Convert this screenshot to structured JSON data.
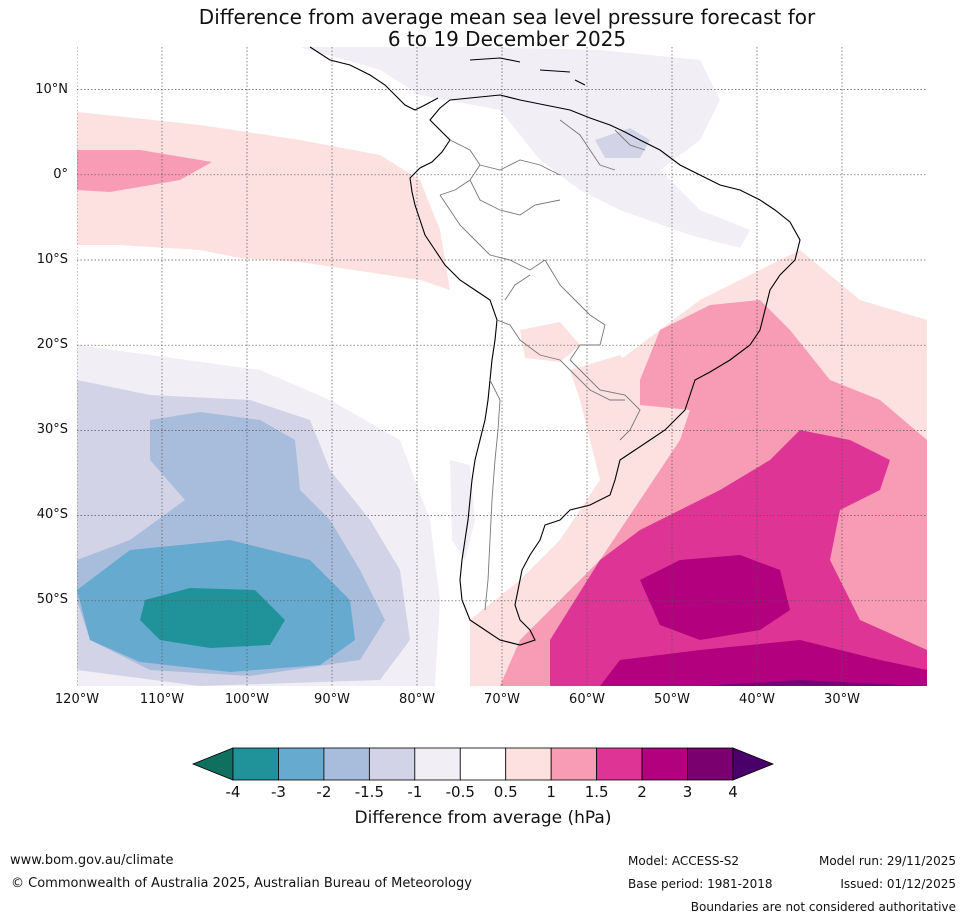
{
  "title": {
    "line1": "Difference from average mean sea level pressure forecast for",
    "line2": "6 to 19 December 2025"
  },
  "map": {
    "lat_labels": [
      "10°N",
      "0°",
      "10°S",
      "20°S",
      "30°S",
      "40°S",
      "50°S"
    ],
    "lon_labels": [
      "120°W",
      "110°W",
      "100°W",
      "90°W",
      "80°W",
      "70°W",
      "60°W",
      "50°W",
      "40°W",
      "30°W"
    ],
    "extent": {
      "lon_min": -120,
      "lon_max": -20,
      "lat_min": -60,
      "lat_max": 15
    }
  },
  "colorbar": {
    "ticks": [
      "-4",
      "-3",
      "-2",
      "-1.5",
      "-1",
      "-0.5",
      "0.5",
      "1",
      "1.5",
      "2",
      "3",
      "4"
    ],
    "colors": [
      "#0f7060",
      "#1f9399",
      "#66aacf",
      "#a8bcdc",
      "#d2d3e7",
      "#f2eef5",
      "#ffffff",
      "#fde0e0",
      "#f89cb5",
      "#dd3496",
      "#b2007e",
      "#7a006f",
      "#4a006a"
    ],
    "label": "Difference from average (hPa)"
  },
  "footer": {
    "website": "www.bom.gov.au/climate",
    "copyright": "© Commonwealth of Australia 2025, Australian Bureau of Meteorology",
    "model": "Model: ACCESS-S2",
    "base_period": "Base period: 1981-2018",
    "model_run": "Model run: 29/11/2025",
    "issued": "Issued: 01/12/2025",
    "boundaries_note": "Boundaries are not considered authoritative"
  }
}
